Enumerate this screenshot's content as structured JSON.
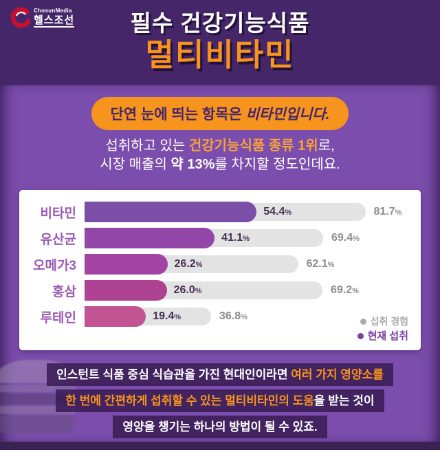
{
  "header": {
    "logo": {
      "brand_small": "ChosunMedia",
      "brand_main": "헬스조선"
    },
    "title_line1": "필수 건강기능식품",
    "title_line2": "멀티비타민"
  },
  "intro": {
    "badge": {
      "prefix": "단연 눈에 띄는 항목은 ",
      "emphasis": "비타민입니다."
    },
    "line1": {
      "prefix": "섭취하고 있는 ",
      "highlight": "건강기능식품 종류 1위",
      "suffix": "로,"
    },
    "line2": {
      "prefix": "시장 매출의 ",
      "emphasis": "약 13%",
      "suffix": "를 차지할 정도인데요."
    }
  },
  "chart_data": {
    "type": "bar",
    "orientation": "horizontal",
    "categories": [
      "비타민",
      "유산균",
      "오메가3",
      "홍삼",
      "루테인"
    ],
    "series": [
      {
        "name": "현재 섭취",
        "values": [
          54.4,
          41.1,
          26.2,
          26.0,
          19.4
        ],
        "bar_colors": [
          "#7B4FA8",
          "#9146A8",
          "#A344A4",
          "#AD4392",
          "#C25494"
        ]
      },
      {
        "name": "섭취 경험",
        "values": [
          81.7,
          69.4,
          62.1,
          69.2,
          36.8
        ],
        "bar_color": "#E3E3E3"
      }
    ],
    "value_suffix": "%",
    "xlim": [
      0,
      100
    ],
    "grid": false,
    "legend_position": "bottom-right",
    "legend": [
      {
        "label": "섭취 경험",
        "color": "#ABABAB"
      },
      {
        "label": "현재 섭취",
        "color": "#7B3FA5"
      }
    ]
  },
  "footer": {
    "line1": {
      "prefix": "인스턴트 식품 중심 식습관을 가진 현대인이라면 ",
      "highlight": "여러 가지 영양소를"
    },
    "line2": {
      "highlight": "한 번에 간편하게 섭취할 수 있는 멀티비타민의 도움",
      "suffix": "을 받는 것이"
    },
    "line3": {
      "text": "영양을 챙기는 하나의 방법이 될 수 있죠."
    }
  },
  "colors": {
    "accent_orange": "#F7941E",
    "header_bg": "#452769",
    "panel_bg": "#7B4DAC",
    "footer_strip_bg": "#392152",
    "card_bg": "#FFFFFF",
    "category_label": "#9C59B4",
    "value_dark": "#463056",
    "value_gray": "#8C8C8C",
    "legend_gray": "#ABABAB",
    "legend_purple": "#7B3FA5"
  }
}
